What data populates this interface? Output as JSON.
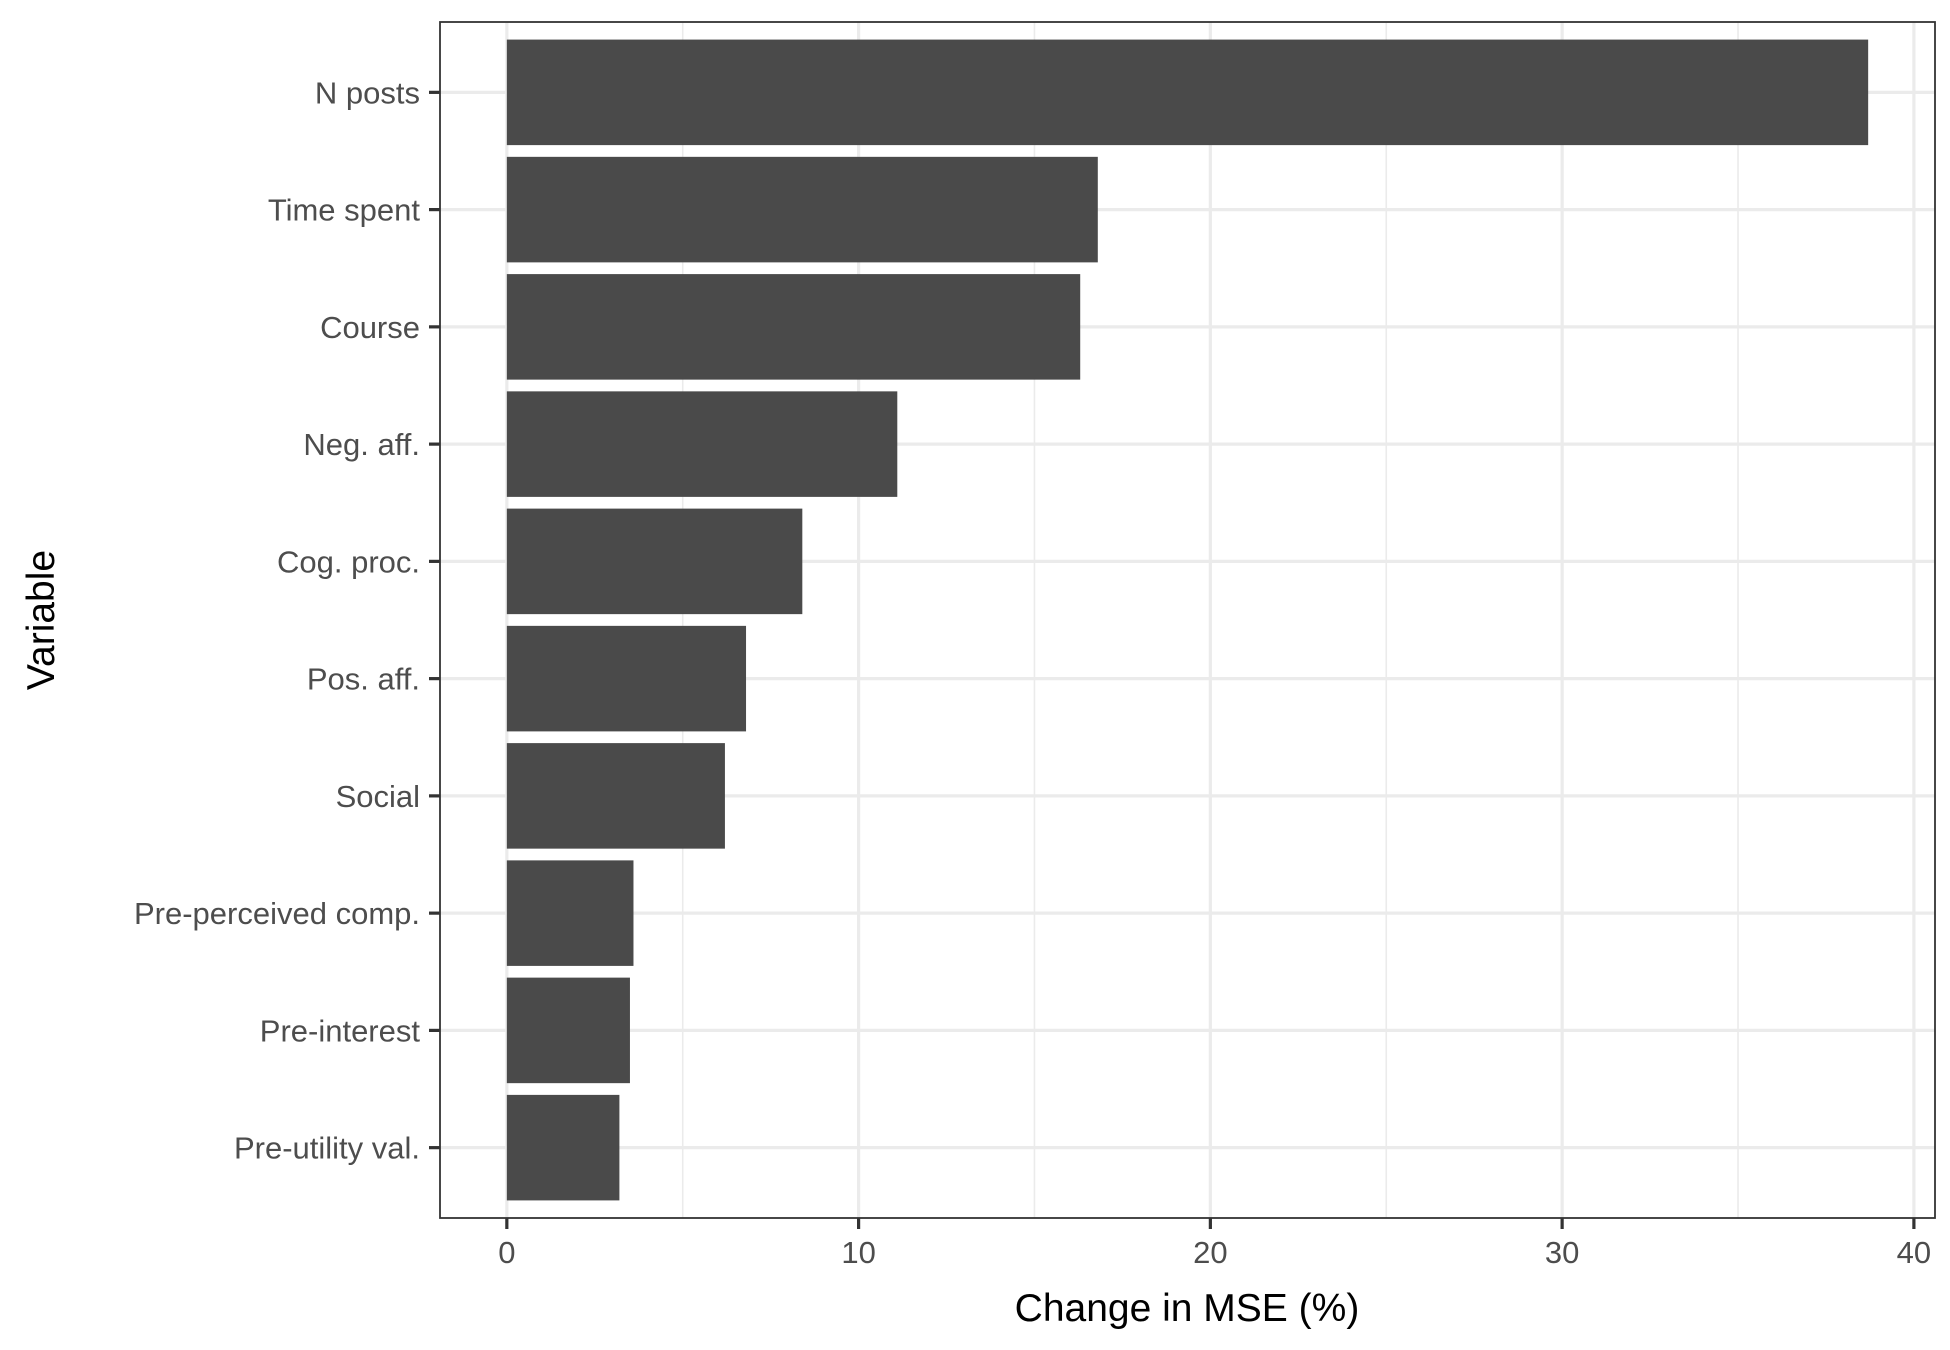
{
  "chart_data": {
    "type": "bar",
    "orientation": "horizontal",
    "categories": [
      "N posts",
      "Time spent",
      "Course",
      "Neg. aff.",
      "Cog. proc.",
      "Pos. aff.",
      "Social",
      "Pre-perceived comp.",
      "Pre-interest",
      "Pre-utility val."
    ],
    "values": [
      38.7,
      16.8,
      16.3,
      11.1,
      8.4,
      6.8,
      6.2,
      3.6,
      3.5,
      3.2
    ],
    "xlabel": "Change in MSE (%)",
    "ylabel": "Variable",
    "xlim": [
      -1.9,
      40.6
    ],
    "xticks": [
      0,
      10,
      20,
      30,
      40
    ],
    "grid": true,
    "legend": "none",
    "colors": {
      "bar": "#4a4a4a",
      "grid": "#ebebeb",
      "border": "#333333"
    }
  }
}
